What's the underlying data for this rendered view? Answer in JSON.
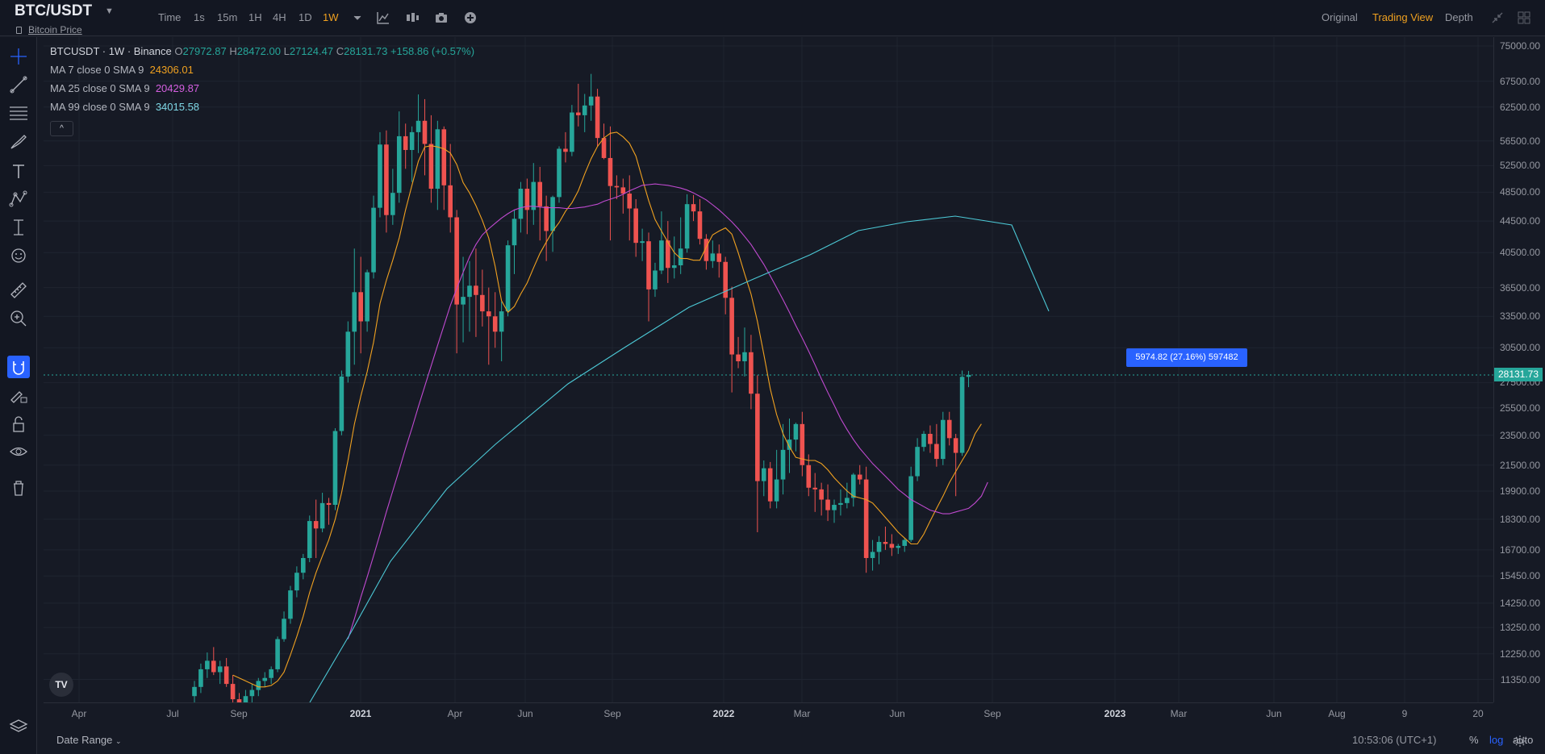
{
  "header": {
    "pair": "BTC/USDT",
    "subtitle": "Bitcoin Price",
    "intervals": [
      {
        "label": "Time",
        "active": false
      },
      {
        "label": "1s",
        "active": false
      },
      {
        "label": "15m",
        "active": false
      },
      {
        "label": "1H",
        "active": false
      },
      {
        "label": "4H",
        "active": false
      },
      {
        "label": "1D",
        "active": false
      },
      {
        "label": "1W",
        "active": true
      }
    ],
    "toolbar_icons": [
      "chevron-down-icon",
      "indicators-icon",
      "candle-style-icon",
      "camera-icon",
      "add-icon"
    ],
    "views": [
      {
        "label": "Original",
        "active": false
      },
      {
        "label": "Trading View",
        "active": true
      },
      {
        "label": "Depth",
        "active": false
      }
    ],
    "window_icons": [
      "collapse-icon",
      "layout-icon"
    ]
  },
  "left_toolbar": [
    "crosshair-icon",
    "trend-line-icon",
    "fib-icon",
    "brush-icon",
    "text-icon",
    "pattern-icon",
    "projection-icon",
    "emoji-icon",
    "ruler-icon",
    "zoom-icon",
    "magnet-icon",
    "lock-drawings-icon",
    "lock-icon",
    "eye-icon",
    "trash-icon"
  ],
  "legend": {
    "symbol": "BTCUSDT · 1W · Binance",
    "ohlc": {
      "O": "27972.87",
      "H": "28472.00",
      "L": "27124.47",
      "C": "28131.73",
      "change": "+158.86 (+0.57%)"
    },
    "ohlc_labels": {
      "O": "O",
      "H": "H",
      "L": "L",
      "C": "C"
    },
    "ma": [
      {
        "label": "MA 7 close 0 SMA 9",
        "value": "24306.01",
        "color": "#f0a120"
      },
      {
        "label": "MA 25 close 0 SMA 9",
        "value": "20429.87",
        "color": "#c04ad0"
      },
      {
        "label": "MA 99 close 0 SMA 9",
        "value": "34015.58",
        "color": "#4cc9d6"
      }
    ],
    "collapse": "^"
  },
  "price_axis": {
    "ticks": [
      "75000.00",
      "67500.00",
      "62500.00",
      "56500.00",
      "52500.00",
      "48500.00",
      "44500.00",
      "40500.00",
      "36500.00",
      "33500.00",
      "30500.00",
      "27500.00",
      "25500.00",
      "23500.00",
      "21500.00",
      "19900.00",
      "18300.00",
      "16700.00",
      "15450.00",
      "14250.00",
      "13250.00",
      "12250.00",
      "11350.00"
    ],
    "last_price": "28131.73"
  },
  "time_axis": {
    "ticks": [
      {
        "label": "Apr",
        "bold": false
      },
      {
        "label": "Jul",
        "bold": false
      },
      {
        "label": "Sep",
        "bold": false
      },
      {
        "label": "2021",
        "bold": true
      },
      {
        "label": "Apr",
        "bold": false
      },
      {
        "label": "Jun",
        "bold": false
      },
      {
        "label": "Sep",
        "bold": false
      },
      {
        "label": "2022",
        "bold": true
      },
      {
        "label": "Mar",
        "bold": false
      },
      {
        "label": "Jun",
        "bold": false
      },
      {
        "label": "Sep",
        "bold": false
      },
      {
        "label": "2023",
        "bold": true
      },
      {
        "label": "Mar",
        "bold": false
      },
      {
        "label": "Jun",
        "bold": false
      },
      {
        "label": "Aug",
        "bold": false
      },
      {
        "label": "9",
        "bold": false
      },
      {
        "label": "20",
        "bold": false
      }
    ]
  },
  "measure_label": "5974.82 (27.16%) 597482",
  "bottom": {
    "date_range": "Date Range",
    "clock": "10:53:06 (UTC+1)",
    "percent": "%",
    "log": "log",
    "auto": "auto"
  },
  "logo_text": "TV",
  "chart_data": {
    "type": "candlestick",
    "title": "",
    "y_scale": "log",
    "candles": [
      [
        10800,
        11300,
        10500,
        11100
      ],
      [
        11100,
        11900,
        10900,
        11700
      ],
      [
        11700,
        12300,
        11400,
        12000
      ],
      [
        12000,
        12500,
        11500,
        11600
      ],
      [
        11600,
        12000,
        11200,
        11800
      ],
      [
        11800,
        12100,
        11100,
        11200
      ],
      [
        11200,
        11500,
        10400,
        10700
      ],
      [
        10700,
        10900,
        10200,
        10500
      ],
      [
        10500,
        11000,
        10300,
        10800
      ],
      [
        10800,
        11200,
        10600,
        11000
      ],
      [
        11000,
        11400,
        10800,
        11300
      ],
      [
        11300,
        11600,
        11100,
        11400
      ],
      [
        11400,
        11800,
        11200,
        11700
      ],
      [
        11700,
        12900,
        11600,
        12800
      ],
      [
        12800,
        13900,
        12700,
        13600
      ],
      [
        13600,
        15000,
        13400,
        14800
      ],
      [
        14800,
        15900,
        14500,
        15600
      ],
      [
        15600,
        16500,
        15300,
        16300
      ],
      [
        16300,
        18500,
        16100,
        18200
      ],
      [
        18200,
        19400,
        16300,
        17800
      ],
      [
        17800,
        19800,
        17600,
        19200
      ],
      [
        19200,
        19500,
        18000,
        19100
      ],
      [
        19100,
        24000,
        18800,
        23800
      ],
      [
        23800,
        28500,
        23500,
        28000
      ],
      [
        28000,
        33000,
        27500,
        32000
      ],
      [
        32000,
        41000,
        29000,
        36000
      ],
      [
        36000,
        40000,
        30000,
        33000
      ],
      [
        33000,
        38500,
        32000,
        38200
      ],
      [
        38200,
        48000,
        37500,
        46300
      ],
      [
        46300,
        58000,
        45000,
        55900
      ],
      [
        55900,
        58300,
        43000,
        45300
      ],
      [
        45300,
        52000,
        44000,
        48400
      ],
      [
        48400,
        61700,
        47000,
        57300
      ],
      [
        57300,
        59500,
        52000,
        55000
      ],
      [
        55000,
        59000,
        50000,
        58000
      ],
      [
        58000,
        64900,
        54500,
        60000
      ],
      [
        60000,
        64000,
        51000,
        56000
      ],
      [
        56000,
        61000,
        47000,
        49000
      ],
      [
        49000,
        60000,
        46000,
        58500
      ],
      [
        58500,
        59000,
        46000,
        49500
      ],
      [
        49500,
        56000,
        43000,
        45000
      ],
      [
        45000,
        46000,
        30000,
        34700
      ],
      [
        34700,
        40000,
        31000,
        35500
      ],
      [
        35500,
        39500,
        32000,
        36700
      ],
      [
        36700,
        41000,
        31500,
        35700
      ],
      [
        35700,
        38500,
        32500,
        34000
      ],
      [
        34000,
        36500,
        29000,
        33500
      ],
      [
        33500,
        36000,
        30500,
        32000
      ],
      [
        32000,
        35000,
        29300,
        34000
      ],
      [
        34000,
        42000,
        33500,
        41400
      ],
      [
        41400,
        46000,
        38000,
        44800
      ],
      [
        44800,
        50000,
        43000,
        49000
      ],
      [
        49000,
        50500,
        42800,
        46000
      ],
      [
        46000,
        52900,
        44000,
        50000
      ],
      [
        50000,
        52300,
        42000,
        46500
      ],
      [
        46500,
        48000,
        39500,
        43200
      ],
      [
        43200,
        48000,
        40600,
        47800
      ],
      [
        47800,
        55600,
        47000,
        55200
      ],
      [
        55200,
        58000,
        53000,
        54700
      ],
      [
        54700,
        62900,
        54000,
        61500
      ],
      [
        61500,
        67000,
        59000,
        61000
      ],
      [
        61000,
        65000,
        58000,
        62800
      ],
      [
        62800,
        69000,
        60000,
        64500
      ],
      [
        64500,
        66000,
        55600,
        57000
      ],
      [
        57000,
        59500,
        53500,
        53700
      ],
      [
        53700,
        59000,
        42000,
        49400
      ],
      [
        49400,
        51000,
        47500,
        49200
      ],
      [
        49200,
        50500,
        45500,
        48300
      ],
      [
        48300,
        51000,
        42000,
        46200
      ],
      [
        46200,
        47500,
        40000,
        41700
      ],
      [
        41700,
        43500,
        39500,
        41900
      ],
      [
        41900,
        43000,
        33000,
        36300
      ],
      [
        36300,
        39300,
        35500,
        38400
      ],
      [
        38400,
        45800,
        38000,
        42000
      ],
      [
        42000,
        44500,
        37000,
        38700
      ],
      [
        38700,
        42500,
        37500,
        39000
      ],
      [
        39000,
        45000,
        38000,
        41000
      ],
      [
        41000,
        48200,
        40500,
        46800
      ],
      [
        46800,
        48100,
        44500,
        45800
      ],
      [
        45800,
        47500,
        41500,
        42200
      ],
      [
        42200,
        42800,
        38500,
        39500
      ],
      [
        39500,
        42000,
        38700,
        40400
      ],
      [
        40400,
        41500,
        37600,
        39400
      ],
      [
        39400,
        40000,
        33700,
        35400
      ],
      [
        35400,
        36600,
        26700,
        29900
      ],
      [
        29900,
        31500,
        28700,
        29300
      ],
      [
        29300,
        32400,
        28000,
        30100
      ],
      [
        30100,
        31700,
        25400,
        26600
      ],
      [
        26600,
        28100,
        17600,
        20500
      ],
      [
        20500,
        21800,
        19600,
        21300
      ],
      [
        21300,
        21700,
        18900,
        19300
      ],
      [
        19300,
        22500,
        18900,
        20600
      ],
      [
        20600,
        24300,
        19700,
        22500
      ],
      [
        22500,
        24700,
        21000,
        23200
      ],
      [
        23200,
        24400,
        22400,
        24300
      ],
      [
        24300,
        25200,
        20800,
        21500
      ],
      [
        21500,
        22200,
        19600,
        20100
      ],
      [
        20100,
        21000,
        18700,
        20000
      ],
      [
        20000,
        20400,
        18500,
        19400
      ],
      [
        19400,
        20300,
        18200,
        18800
      ],
      [
        18800,
        19400,
        18100,
        19100
      ],
      [
        19100,
        20000,
        18500,
        19200
      ],
      [
        19200,
        20400,
        18900,
        19500
      ],
      [
        19500,
        21000,
        19000,
        20900
      ],
      [
        20900,
        21500,
        20300,
        20600
      ],
      [
        20600,
        21400,
        15600,
        16300
      ],
      [
        16300,
        17200,
        15700,
        16600
      ],
      [
        16600,
        17400,
        16000,
        17100
      ],
      [
        17100,
        17900,
        16700,
        17000
      ],
      [
        17000,
        17500,
        16400,
        16800
      ],
      [
        16800,
        17000,
        16500,
        16900
      ],
      [
        16900,
        17300,
        16600,
        17200
      ],
      [
        17200,
        21400,
        17100,
        20800
      ],
      [
        20800,
        23300,
        20500,
        22700
      ],
      [
        22700,
        23800,
        22400,
        23600
      ],
      [
        23600,
        24200,
        22300,
        22900
      ],
      [
        22900,
        24300,
        21400,
        21900
      ],
      [
        21900,
        25200,
        21500,
        24600
      ],
      [
        24600,
        25200,
        22800,
        23300
      ],
      [
        23300,
        23600,
        19600,
        22300
      ],
      [
        22300,
        28500,
        22100,
        27970
      ],
      [
        27970,
        28472,
        27124,
        28131.73
      ]
    ],
    "ma7": [
      null,
      null,
      null,
      null,
      null,
      null,
      11500,
      11400,
      11300,
      11200,
      11100,
      11100,
      11150,
      11300,
      11600,
      12200,
      12900,
      13700,
      14700,
      15600,
      16400,
      17200,
      18300,
      19800,
      21800,
      24300,
      26400,
      28400,
      31000,
      34800,
      37300,
      39600,
      42300,
      46000,
      49500,
      53200,
      55500,
      55700,
      55500,
      55200,
      54500,
      52700,
      49900,
      48400,
      46600,
      44600,
      42300,
      38900,
      35100,
      33900,
      34500,
      35800,
      37000,
      38700,
      40400,
      41800,
      43200,
      44300,
      45800,
      47000,
      48700,
      51200,
      53600,
      55600,
      57000,
      57800,
      58000,
      57200,
      56100,
      54000,
      50500,
      47300,
      44700,
      43200,
      41800,
      40500,
      39800,
      39800,
      39600,
      39600,
      41200,
      42700,
      43200,
      43600,
      42800,
      40500,
      38000,
      35800,
      33000,
      29900,
      27000,
      25000,
      23600,
      22700,
      22000,
      21900,
      21800,
      21800,
      21600,
      21200,
      20700,
      20300,
      19900,
      19600,
      19500,
      19400,
      19200,
      18800,
      18400,
      18000,
      17600,
      17300,
      17000,
      17000,
      17500,
      18200,
      18900,
      19600,
      20400,
      21100,
      21800,
      22500,
      23600,
      24306.01
    ],
    "ma25": [
      null,
      null,
      null,
      null,
      null,
      null,
      null,
      null,
      null,
      null,
      null,
      null,
      null,
      null,
      null,
      null,
      null,
      null,
      null,
      null,
      null,
      null,
      null,
      null,
      12800,
      13600,
      14500,
      15400,
      16400,
      17500,
      18700,
      19900,
      21200,
      22600,
      24000,
      25600,
      27200,
      28900,
      30700,
      32600,
      34600,
      36400,
      38200,
      40000,
      41500,
      42700,
      43500,
      44200,
      44900,
      45500,
      46000,
      46300,
      46500,
      46500,
      46400,
      46300,
      46300,
      46300,
      46200,
      46200,
      46300,
      46400,
      46600,
      46800,
      47200,
      47500,
      47800,
      48200,
      48700,
      49100,
      49500,
      49600,
      49700,
      49600,
      49500,
      49300,
      49100,
      48800,
      48400,
      47900,
      47400,
      46700,
      46000,
      45200,
      44400,
      43500,
      42500,
      41500,
      40300,
      39100,
      37800,
      36500,
      35200,
      33900,
      32600,
      31400,
      30200,
      29000,
      27800,
      26700,
      25700,
      24700,
      23900,
      23200,
      22600,
      22100,
      21600,
      21200,
      20800,
      20400,
      20000,
      19700,
      19400,
      19200,
      19000,
      18800,
      18700,
      18600,
      18600,
      18700,
      18800,
      18900,
      19200,
      19600,
      20429.87
    ],
    "ma99": [
      null,
      null,
      null,
      null,
      null,
      null,
      null,
      null,
      null,
      null,
      null,
      null,
      null,
      null,
      null,
      null,
      null,
      null,
      null,
      null,
      null,
      null,
      null,
      null,
      null,
      null,
      null,
      null,
      null,
      null,
      null,
      null,
      null,
      null,
      null,
      null,
      null,
      null,
      null,
      null,
      null,
      null,
      null,
      null,
      null,
      null,
      null,
      null,
      null,
      null,
      null,
      null,
      null,
      null,
      null,
      null,
      null,
      null,
      null,
      null,
      null,
      null,
      null,
      null,
      null,
      null,
      null,
      null,
      null,
      null,
      null,
      null,
      null,
      null,
      null,
      null,
      null,
      null,
      null,
      null,
      null,
      null,
      null,
      null,
      null,
      null,
      null,
      null,
      null,
      null,
      null,
      null,
      null,
      null,
      null,
      null,
      null,
      null,
      null,
      null,
      null,
      null,
      null,
      null,
      null,
      null,
      null,
      null,
      null,
      null,
      null,
      null,
      null,
      null,
      null,
      null,
      null,
      null,
      null,
      null,
      null,
      null,
      null,
      34015.58
    ],
    "ylim": [
      10600,
      77000
    ],
    "colors": {
      "up": "#26a69a",
      "down": "#ef5350",
      "ma7": "#f0a120",
      "ma25": "#c04ad0",
      "ma99": "#4cc9d6"
    }
  }
}
